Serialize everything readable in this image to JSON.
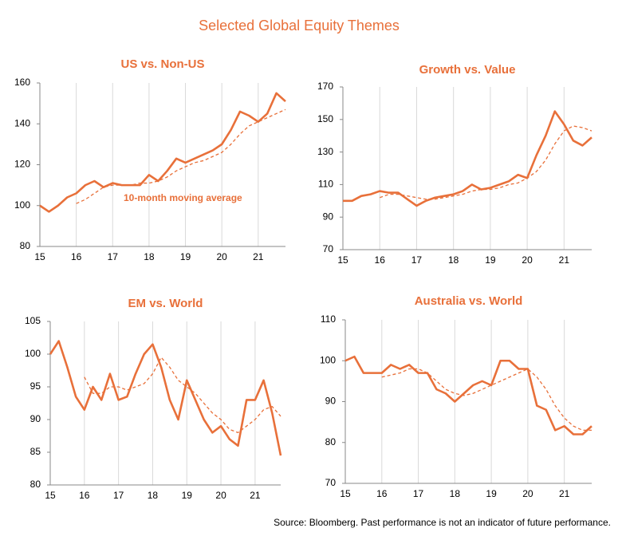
{
  "title": "Selected Global Equity Themes",
  "source": "Source: Bloomberg.  Past performance is not an indicator of future performance.",
  "chart_data": [
    {
      "type": "line",
      "title": "US vs. Non-US",
      "annotation": "10-month moving average",
      "color": "#e8703a",
      "grid": "x",
      "x": [
        15,
        15.25,
        15.5,
        15.75,
        16,
        16.25,
        16.5,
        16.75,
        17,
        17.25,
        17.5,
        17.75,
        18,
        18.25,
        18.5,
        18.75,
        19,
        19.25,
        19.5,
        19.75,
        20,
        20.25,
        20.5,
        20.75,
        21,
        21.25,
        21.5,
        21.75
      ],
      "xlim": [
        15,
        21.75
      ],
      "xticks": [
        15,
        16,
        17,
        18,
        19,
        20,
        21
      ],
      "ylim": [
        80,
        160
      ],
      "yticks": [
        80,
        100,
        120,
        140,
        160
      ],
      "series": [
        {
          "dashed": false,
          "values": [
            100,
            97,
            100,
            104,
            106,
            110,
            112,
            109,
            111,
            110,
            110,
            110,
            115,
            112,
            117,
            123,
            121,
            123,
            125,
            127,
            130,
            137,
            146,
            144,
            141,
            145,
            155,
            151
          ]
        },
        {
          "dashed": true,
          "values": [
            null,
            null,
            null,
            null,
            101,
            103,
            106,
            109,
            110,
            110,
            110,
            111,
            111,
            112,
            114,
            117,
            119,
            121,
            122,
            124,
            126,
            130,
            135,
            139,
            141,
            143,
            145,
            147
          ]
        }
      ]
    },
    {
      "type": "line",
      "title": "Growth vs. Value",
      "color": "#e8703a",
      "grid": "x",
      "x": [
        15,
        15.25,
        15.5,
        15.75,
        16,
        16.25,
        16.5,
        16.75,
        17,
        17.25,
        17.5,
        17.75,
        18,
        18.25,
        18.5,
        18.75,
        19,
        19.25,
        19.5,
        19.75,
        20,
        20.25,
        20.5,
        20.75,
        21,
        21.25,
        21.5,
        21.75
      ],
      "xlim": [
        15,
        21.75
      ],
      "xticks": [
        15,
        16,
        17,
        18,
        19,
        20,
        21
      ],
      "ylim": [
        70,
        170
      ],
      "yticks": [
        70,
        90,
        110,
        130,
        150,
        170
      ],
      "series": [
        {
          "dashed": false,
          "values": [
            100,
            100,
            103,
            104,
            106,
            105,
            105,
            101,
            97,
            100,
            102,
            103,
            104,
            106,
            110,
            107,
            108,
            110,
            112,
            116,
            114,
            128,
            140,
            155,
            147,
            137,
            134,
            139
          ]
        },
        {
          "dashed": true,
          "values": [
            null,
            null,
            null,
            null,
            102,
            104,
            104,
            103,
            102,
            101,
            101,
            102,
            103,
            104,
            106,
            107,
            107,
            108,
            110,
            111,
            114,
            118,
            125,
            135,
            143,
            146,
            145,
            143
          ]
        }
      ]
    },
    {
      "type": "line",
      "title": "EM vs. World",
      "color": "#e8703a",
      "grid": "x",
      "x": [
        15,
        15.25,
        15.5,
        15.75,
        16,
        16.25,
        16.5,
        16.75,
        17,
        17.25,
        17.5,
        17.75,
        18,
        18.25,
        18.5,
        18.75,
        19,
        19.25,
        19.5,
        19.75,
        20,
        20.25,
        20.5,
        20.75,
        21,
        21.25,
        21.5,
        21.75
      ],
      "xlim": [
        15,
        21.75
      ],
      "xticks": [
        15,
        16,
        17,
        18,
        19,
        20,
        21
      ],
      "ylim": [
        80,
        105
      ],
      "yticks": [
        80,
        85,
        90,
        95,
        100,
        105
      ],
      "series": [
        {
          "dashed": false,
          "values": [
            100,
            102,
            98,
            93.5,
            91.5,
            95,
            93,
            97,
            93,
            93.5,
            97,
            100,
            101.5,
            98,
            93,
            90,
            96,
            93,
            90,
            88,
            89,
            87,
            86,
            93,
            93,
            96,
            91,
            84.5
          ]
        },
        {
          "dashed": true,
          "values": [
            null,
            null,
            null,
            null,
            96.5,
            94,
            94,
            95,
            95,
            94.5,
            95,
            95.5,
            97,
            99.5,
            98,
            96,
            95,
            94,
            92.5,
            91,
            90,
            88.5,
            88,
            89,
            90,
            91.5,
            92,
            90.5
          ]
        }
      ]
    },
    {
      "type": "line",
      "title": "Australia vs. World",
      "color": "#e8703a",
      "grid": "x",
      "x": [
        15,
        15.25,
        15.5,
        15.75,
        16,
        16.25,
        16.5,
        16.75,
        17,
        17.25,
        17.5,
        17.75,
        18,
        18.25,
        18.5,
        18.75,
        19,
        19.25,
        19.5,
        19.75,
        20,
        20.25,
        20.5,
        20.75,
        21,
        21.25,
        21.5,
        21.75
      ],
      "xlim": [
        15,
        21.75
      ],
      "xticks": [
        15,
        16,
        17,
        18,
        19,
        20,
        21
      ],
      "ylim": [
        70,
        110
      ],
      "yticks": [
        70,
        80,
        90,
        100,
        110
      ],
      "series": [
        {
          "dashed": false,
          "values": [
            100,
            101,
            97,
            97,
            97,
            99,
            98,
            99,
            97,
            97,
            93,
            92,
            90,
            92,
            94,
            95,
            94,
            100,
            100,
            98,
            98,
            89,
            88,
            83,
            84,
            82,
            82,
            84
          ]
        },
        {
          "dashed": true,
          "values": [
            null,
            null,
            null,
            null,
            96,
            96.5,
            97,
            98,
            98,
            97,
            95,
            93,
            92,
            91.5,
            92,
            93,
            94,
            95,
            96,
            97,
            98,
            96,
            93,
            89,
            86,
            84,
            83,
            83
          ]
        }
      ]
    }
  ]
}
